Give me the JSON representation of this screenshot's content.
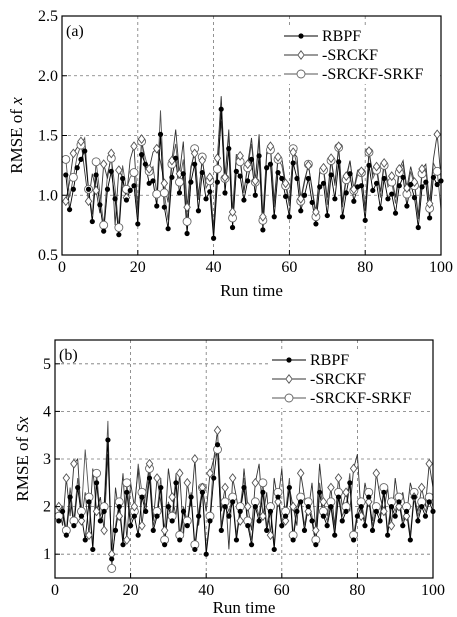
{
  "chart_data": [
    {
      "type": "line",
      "panel_label": "(a)",
      "xlabel": "Run time",
      "ylabel_prefix": "RMSE of ",
      "ylabel_var": "x",
      "xlim": [
        0,
        100
      ],
      "ylim": [
        0.5,
        2.5
      ],
      "xticks": [
        "0",
        "20",
        "40",
        "60",
        "80",
        "100"
      ],
      "yticks": [
        "0.5",
        "1.0",
        "1.5",
        "2.0",
        "2.5"
      ],
      "grid": true,
      "legend_position": "top-right",
      "x": [
        1,
        2,
        3,
        4,
        5,
        6,
        7,
        8,
        9,
        10,
        11,
        12,
        13,
        14,
        15,
        16,
        17,
        18,
        19,
        20,
        21,
        22,
        23,
        24,
        25,
        26,
        27,
        28,
        29,
        30,
        31,
        32,
        33,
        34,
        35,
        36,
        37,
        38,
        39,
        40,
        41,
        42,
        43,
        44,
        45,
        46,
        47,
        48,
        49,
        50,
        51,
        52,
        53,
        54,
        55,
        56,
        57,
        58,
        59,
        60,
        61,
        62,
        63,
        64,
        65,
        66,
        67,
        68,
        69,
        70,
        71,
        72,
        73,
        74,
        75,
        76,
        77,
        78,
        79,
        80,
        81,
        82,
        83,
        84,
        85,
        86,
        87,
        88,
        89,
        90,
        91,
        92,
        93,
        94,
        95,
        96,
        97,
        98,
        99,
        100
      ],
      "series": [
        {
          "name": "RBPF",
          "marker": "dot",
          "values": [
            1.17,
            0.88,
            1.05,
            1.23,
            1.3,
            1.37,
            1.05,
            0.78,
            1.17,
            0.92,
            0.7,
            1.05,
            1.2,
            0.97,
            0.67,
            1.14,
            0.96,
            1.04,
            1.08,
            0.76,
            1.34,
            1.26,
            1.1,
            1.12,
            0.91,
            1.51,
            0.9,
            0.72,
            1.15,
            1.31,
            1.02,
            1.18,
            0.68,
            1.11,
            1.26,
            0.87,
            1.19,
            0.97,
            1.03,
            0.64,
            1.11,
            1.72,
            1.02,
            1.39,
            0.73,
            1.2,
            1.16,
            0.96,
            1.12,
            1.3,
            1.0,
            1.33,
            0.71,
            1.23,
            1.26,
            0.82,
            1.19,
            1.14,
            0.99,
            0.82,
            1.27,
            1.14,
            0.87,
            1.0,
            1.14,
            0.94,
            0.76,
            1.07,
            1.1,
            0.83,
            1.17,
            0.97,
            1.28,
            0.82,
            1.02,
            1.18,
            0.95,
            1.07,
            1.08,
            0.79,
            1.25,
            1.04,
            1.1,
            0.89,
            1.14,
            0.97,
            1.01,
            0.85,
            1.08,
            1.15,
            0.91,
            1.09,
            0.98,
            0.73,
            1.07,
            1.11,
            0.81,
            1.15,
            1.09,
            1.12
          ]
        },
        {
          "name": "SRCKF",
          "marker": "diamond",
          "values": [
            0.95,
            1.11,
            1.35,
            1.4,
            1.45,
            1.2,
            0.95,
            1.18,
            1.04,
            0.85,
            1.26,
            1.14,
            1.35,
            0.75,
            1.21,
            1.15,
            0.98,
            1.3,
            1.41,
            0.88,
            1.47,
            1.21,
            1.22,
            1.36,
            1.39,
            1.28,
            1.1,
            0.94,
            1.29,
            1.55,
            1.18,
            1.45,
            0.9,
            1.24,
            1.35,
            1.0,
            1.29,
            1.11,
            1.15,
            0.71,
            1.31,
            1.83,
            1.15,
            1.55,
            0.86,
            1.34,
            1.33,
            1.02,
            1.26,
            1.48,
            1.12,
            1.51,
            0.82,
            1.36,
            1.41,
            0.95,
            1.32,
            1.31,
            1.1,
            0.95,
            1.36,
            1.32,
            0.97,
            1.13,
            1.25,
            1.06,
            0.86,
            1.2,
            1.23,
            0.98,
            1.31,
            1.1,
            1.41,
            0.94,
            1.16,
            1.29,
            1.05,
            1.21,
            1.2,
            0.88,
            1.37,
            1.17,
            1.24,
            1.03,
            1.27,
            1.1,
            1.16,
            0.98,
            1.22,
            1.29,
            1.06,
            1.24,
            1.11,
            0.83,
            1.22,
            1.26,
            0.93,
            1.3,
            1.51,
            1.14
          ]
        },
        {
          "name": "SRCKF-SRKF",
          "marker": "circle",
          "values": [
            1.3,
            0.98,
            1.15,
            1.33,
            1.42,
            1.48,
            1.05,
            0.84,
            1.28,
            1.02,
            0.75,
            1.18,
            1.31,
            1.06,
            0.73,
            1.25,
            1.05,
            1.15,
            1.19,
            0.82,
            1.45,
            1.31,
            1.2,
            1.24,
            1.01,
            1.71,
            1.02,
            0.79,
            1.26,
            1.43,
            1.11,
            1.3,
            0.78,
            1.21,
            1.39,
            0.96,
            1.32,
            1.06,
            1.12,
            0.68,
            1.22,
            1.62,
            1.14,
            1.51,
            0.81,
            1.32,
            1.28,
            1.04,
            1.23,
            1.43,
            1.11,
            1.46,
            0.79,
            1.34,
            1.38,
            0.9,
            1.3,
            1.25,
            1.08,
            0.91,
            1.39,
            1.25,
            0.95,
            1.11,
            1.26,
            1.04,
            0.82,
            1.18,
            1.21,
            0.92,
            1.29,
            1.08,
            1.4,
            0.9,
            1.13,
            1.29,
            1.04,
            1.17,
            1.19,
            0.87,
            1.36,
            1.14,
            1.21,
            0.98,
            1.25,
            1.07,
            1.11,
            0.93,
            1.19,
            1.26,
            1.01,
            1.2,
            1.08,
            0.8,
            1.18,
            1.22,
            0.89,
            1.27,
            1.2,
            0.88
          ]
        }
      ]
    },
    {
      "type": "line",
      "panel_label": "(b)",
      "xlabel": "Run time",
      "ylabel_prefix": "RMSE of ",
      "ylabel_var": "Sx",
      "xlim": [
        0,
        100
      ],
      "ylim": [
        0.5,
        5.5
      ],
      "xticks": [
        "0",
        "20",
        "40",
        "60",
        "80",
        "100"
      ],
      "yticks": [
        "1",
        "2",
        "3",
        "4",
        "5"
      ],
      "grid": true,
      "legend_position": "top-right",
      "x": [
        1,
        2,
        3,
        4,
        5,
        6,
        7,
        8,
        9,
        10,
        11,
        12,
        13,
        14,
        15,
        16,
        17,
        18,
        19,
        20,
        21,
        22,
        23,
        24,
        25,
        26,
        27,
        28,
        29,
        30,
        31,
        32,
        33,
        34,
        35,
        36,
        37,
        38,
        39,
        40,
        41,
        42,
        43,
        44,
        45,
        46,
        47,
        48,
        49,
        50,
        51,
        52,
        53,
        54,
        55,
        56,
        57,
        58,
        59,
        60,
        61,
        62,
        63,
        64,
        65,
        66,
        67,
        68,
        69,
        70,
        71,
        72,
        73,
        74,
        75,
        76,
        77,
        78,
        79,
        80,
        81,
        82,
        83,
        84,
        85,
        86,
        87,
        88,
        89,
        90,
        91,
        92,
        93,
        94,
        95,
        96,
        97,
        98,
        99,
        100
      ],
      "series": [
        {
          "name": "RBPF",
          "marker": "dot",
          "values": [
            1.7,
            1.9,
            1.4,
            2.2,
            1.6,
            2.4,
            1.8,
            1.3,
            2.1,
            1.1,
            2.5,
            1.7,
            1.9,
            3.4,
            0.9,
            1.5,
            2.0,
            1.2,
            2.3,
            1.6,
            1.8,
            1.4,
            2.2,
            1.9,
            2.6,
            1.5,
            1.8,
            2.4,
            1.2,
            2.0,
            1.7,
            2.5,
            1.3,
            1.9,
            1.6,
            2.2,
            1.1,
            1.8,
            2.3,
            1.0,
            1.7,
            2.6,
            3.3,
            1.5,
            2.0,
            1.8,
            2.1,
            1.3,
            1.9,
            2.4,
            1.6,
            1.2,
            2.0,
            1.7,
            2.3,
            1.5,
            1.9,
            1.1,
            2.2,
            1.6,
            1.8,
            2.4,
            1.3,
            1.9,
            2.1,
            1.5,
            2.0,
            1.7,
            1.2,
            2.3,
            1.8,
            1.6,
            2.0,
            1.4,
            2.2,
            1.7,
            1.9,
            2.5,
            1.3,
            1.8,
            2.0,
            1.6,
            2.2,
            1.5,
            1.9,
            1.7,
            2.3,
            1.4,
            2.0,
            1.8,
            2.1,
            1.6,
            1.9,
            1.3,
            2.2,
            1.7,
            2.0,
            1.8,
            2.1,
            1.9
          ]
        },
        {
          "name": "SRCKF",
          "marker": "diamond",
          "values": [
            2.0,
            1.6,
            2.6,
            1.8,
            2.9,
            3.0,
            1.7,
            2.3,
            1.4,
            2.8,
            1.9,
            2.2,
            1.5,
            3.1,
            1.0,
            2.4,
            1.8,
            2.7,
            1.3,
            2.5,
            2.0,
            2.8,
            1.6,
            2.3,
            2.9,
            1.7,
            2.6,
            2.1,
            1.5,
            2.8,
            2.2,
            1.8,
            2.7,
            1.4,
            2.5,
            2.0,
            3.0,
            1.6,
            2.4,
            1.9,
            2.7,
            3.0,
            3.6,
            1.9,
            2.4,
            1.1,
            2.6,
            2.2,
            1.7,
            2.8,
            2.0,
            1.5,
            2.5,
            2.9,
            1.8,
            2.3,
            1.4,
            2.6,
            2.1,
            2.8,
            1.7,
            2.4,
            2.0,
            1.6,
            2.7,
            2.2,
            1.9,
            2.5,
            1.5,
            2.9,
            2.1,
            1.8,
            2.4,
            1.6,
            2.6,
            2.0,
            2.3,
            1.9,
            2.8,
            3.1,
            1.8,
            2.5,
            2.1,
            1.7,
            2.7,
            2.2,
            1.9,
            2.4,
            1.6,
            2.6,
            2.0,
            2.3,
            1.8,
            2.5,
            2.2,
            1.9,
            2.4,
            2.0,
            2.9,
            2.4
          ]
        },
        {
          "name": "SRCKF-SRKF",
          "marker": "circle",
          "values": [
            1.8,
            2.0,
            1.5,
            2.4,
            1.7,
            2.6,
            1.9,
            3.2,
            2.2,
            1.2,
            2.7,
            1.8,
            2.0,
            3.8,
            0.7,
            1.6,
            2.1,
            1.3,
            2.5,
            1.7,
            1.9,
            2.9,
            2.3,
            2.0,
            2.8,
            1.6,
            1.9,
            2.6,
            1.3,
            2.1,
            1.8,
            2.7,
            1.4,
            2.0,
            1.7,
            2.3,
            1.2,
            1.9,
            2.4,
            1.1,
            1.8,
            3.0,
            3.2,
            1.6,
            2.1,
            1.9,
            2.2,
            1.4,
            2.0,
            2.6,
            1.7,
            1.3,
            2.1,
            1.8,
            2.5,
            1.6,
            2.0,
            1.2,
            2.3,
            1.7,
            1.9,
            2.6,
            1.4,
            2.0,
            2.2,
            1.6,
            2.1,
            1.8,
            1.3,
            2.5,
            1.9,
            1.7,
            2.1,
            1.5,
            2.3,
            1.8,
            2.0,
            2.7,
            1.4,
            1.9,
            2.1,
            1.7,
            2.3,
            1.6,
            2.0,
            1.8,
            2.4,
            1.5,
            2.1,
            1.9,
            2.2,
            1.7,
            2.0,
            1.4,
            2.3,
            1.8,
            2.1,
            1.9,
            2.2,
            2.0
          ]
        }
      ]
    }
  ]
}
